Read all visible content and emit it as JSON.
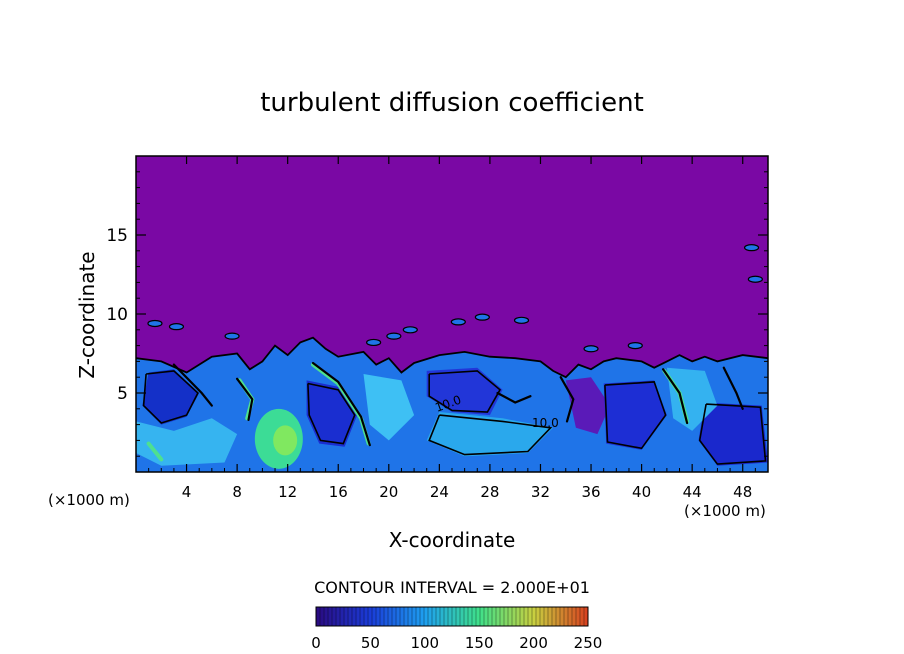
{
  "chart_data": {
    "type": "heatmap",
    "title": "turbulent diffusion coefficient",
    "xlabel": "X-coordinate",
    "ylabel": "Z-coordinate",
    "x_unit_label_left": "(×1000 m)",
    "x_unit_label_right": "(×1000 m)",
    "xlim": [
      0,
      50
    ],
    "ylim": [
      0,
      20
    ],
    "x_ticks": [
      4,
      8,
      12,
      16,
      20,
      24,
      28,
      32,
      36,
      40,
      44,
      48
    ],
    "y_ticks": [
      5,
      10,
      15
    ],
    "contour_interval_text": "CONTOUR INTERVAL = 2.000E+01",
    "contour_label": "10.0",
    "colorbar": {
      "range": [
        0,
        250
      ],
      "ticks": [
        0,
        50,
        100,
        150,
        200,
        250
      ],
      "colors": [
        "#2a0a80",
        "#1a3cd8",
        "#1ea0f0",
        "#3fe08a",
        "#c8d040",
        "#d84020"
      ]
    },
    "background_value": 0,
    "background_color": "#7a08a4",
    "turbulent_layer_top_km": 7.2,
    "regions": [
      {
        "name": "deep-blue-core-15",
        "value": 30
      },
      {
        "name": "green-hotspot-12",
        "value": 120
      },
      {
        "name": "blue-core-34",
        "value": 25
      }
    ]
  }
}
